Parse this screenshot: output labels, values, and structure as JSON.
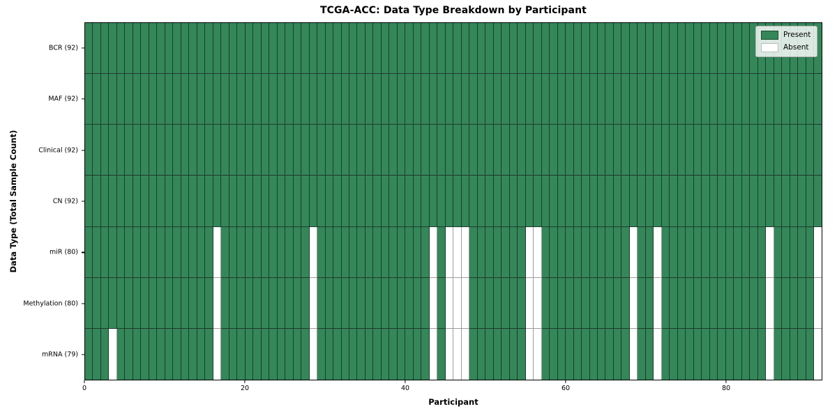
{
  "chart_data": {
    "type": "heatmap",
    "title": "TCGA-ACC: Data Type Breakdown by Participant",
    "xlabel": "Participant",
    "ylabel": "Data Type (Total Sample Count)",
    "n_participants": 92,
    "x_ticks": [
      0,
      20,
      40,
      60,
      80
    ],
    "x_range": [
      0,
      92
    ],
    "grid": "per-cell borders, black spines",
    "legend": {
      "position": "upper right",
      "entries": [
        {
          "label": "Present",
          "color": "#348759"
        },
        {
          "label": "Absent",
          "color": "#ffffff"
        }
      ]
    },
    "rows": [
      {
        "label": "BCR",
        "total": 92,
        "tick_label": "BCR (92)",
        "absent_participants": []
      },
      {
        "label": "MAF",
        "total": 92,
        "tick_label": "MAF (92)",
        "absent_participants": []
      },
      {
        "label": "Clinical",
        "total": 92,
        "tick_label": "Clinical (92)",
        "absent_participants": []
      },
      {
        "label": "CN",
        "total": 92,
        "tick_label": "CN (92)",
        "absent_participants": []
      },
      {
        "label": "miR",
        "total": 80,
        "tick_label": "miR (80)",
        "absent_participants": [
          16,
          28,
          43,
          45,
          46,
          47,
          55,
          56,
          68,
          71,
          85,
          91
        ]
      },
      {
        "label": "Methylation",
        "total": 80,
        "tick_label": "Methylation (80)",
        "absent_participants": [
          16,
          28,
          43,
          45,
          46,
          47,
          55,
          56,
          68,
          71,
          85,
          91
        ]
      },
      {
        "label": "mRNA",
        "total": 79,
        "tick_label": "mRNA (79)",
        "absent_participants": [
          3,
          16,
          28,
          43,
          45,
          46,
          47,
          55,
          56,
          68,
          71,
          85,
          91
        ]
      }
    ],
    "colors": {
      "present": "#348759",
      "absent": "#ffffff",
      "present_edge": "#1f3b2b",
      "absent_edge": "#9c9c9c",
      "spine": "#000000"
    }
  }
}
